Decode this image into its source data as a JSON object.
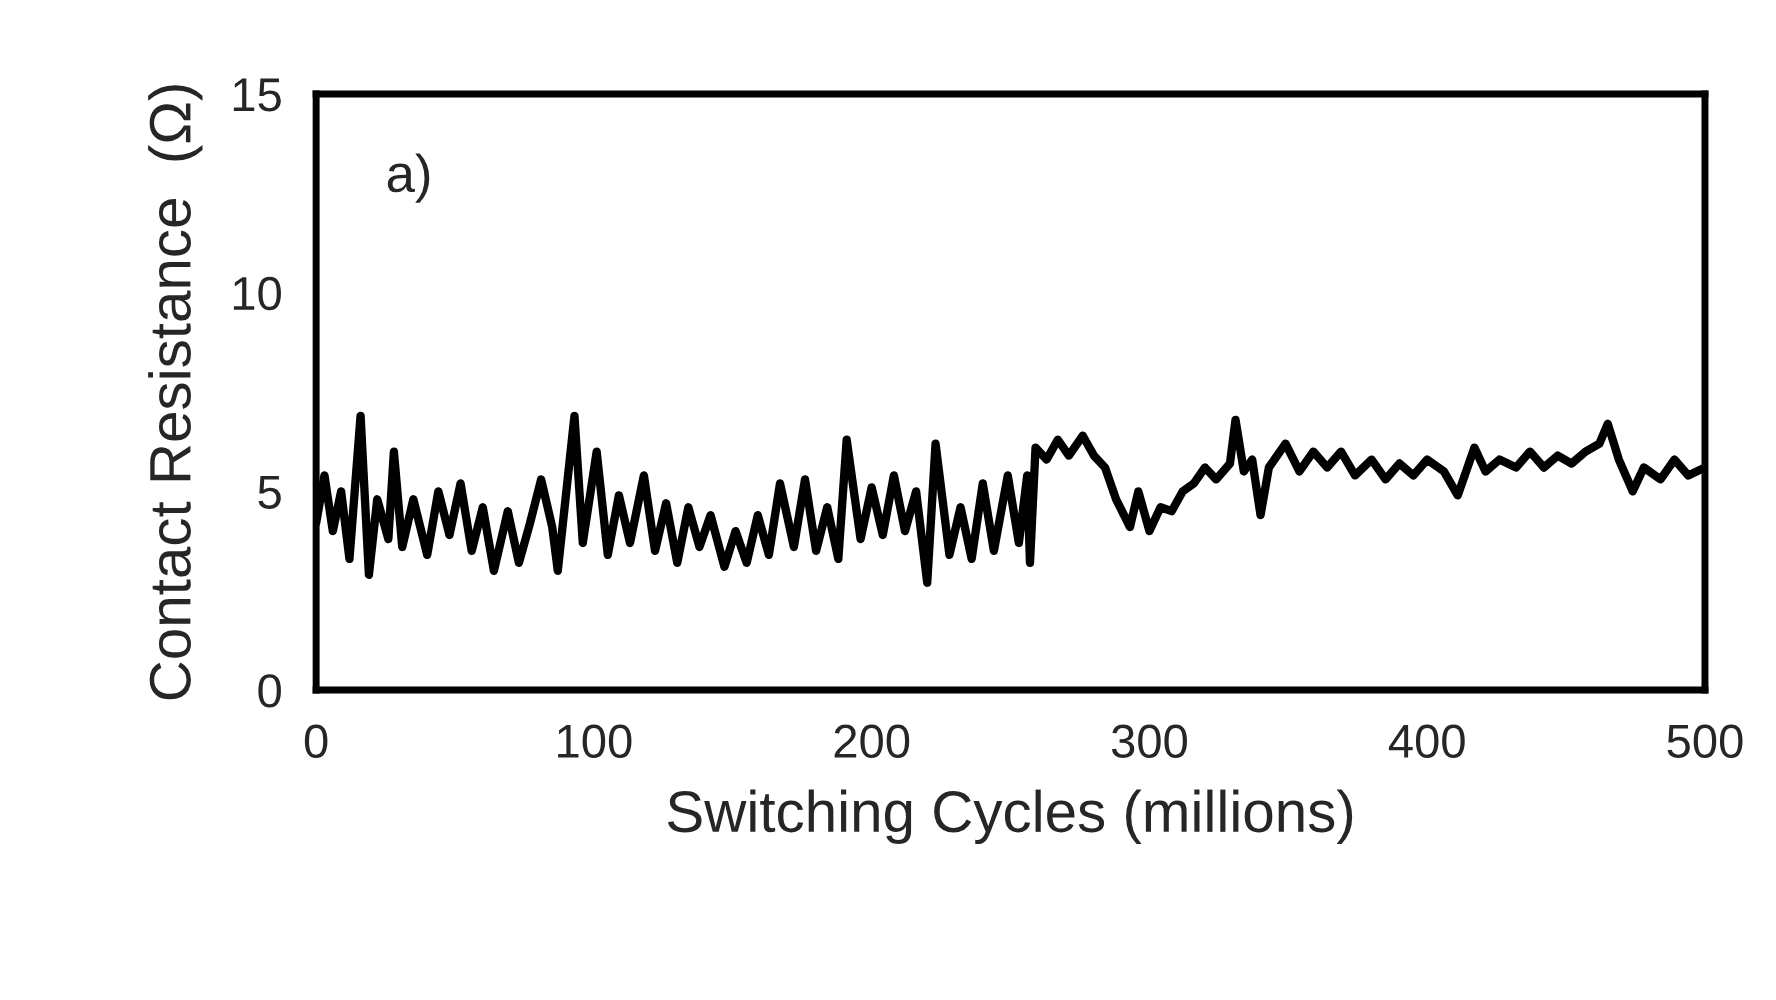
{
  "chart_data": {
    "type": "line",
    "xlabel": "Switching Cycles (millions)",
    "ylabel": "Contact Resistance  (Ω)",
    "annotations": [
      "a)"
    ],
    "xlim": [
      0,
      500
    ],
    "xticks": [
      0,
      100,
      200,
      300,
      400,
      500
    ],
    "ylim": [
      0,
      15
    ],
    "yticks": [
      0,
      5,
      10,
      15
    ],
    "grid": false,
    "marker": "none",
    "line_style": "solid",
    "series": [
      {
        "color": "#000000",
        "x": [
          0,
          3,
          6,
          9,
          12,
          16,
          19,
          22,
          26,
          28,
          31,
          35,
          40,
          44,
          48,
          52,
          56,
          60,
          64,
          69,
          73,
          77,
          81,
          85,
          87,
          93,
          96,
          101,
          105,
          109,
          113,
          118,
          122,
          126,
          130,
          134,
          138,
          142,
          147,
          151,
          155,
          159,
          163,
          167,
          172,
          176,
          180,
          184,
          188,
          191,
          196,
          200,
          204,
          208,
          212,
          216,
          220,
          223,
          228,
          232,
          236,
          240,
          244,
          249,
          253,
          256,
          257,
          259,
          263,
          267,
          271,
          276,
          280,
          284,
          288,
          293,
          296,
          300,
          304,
          308,
          312,
          316,
          320,
          324,
          329,
          331,
          334,
          337,
          340,
          343,
          349,
          354,
          359,
          364,
          369,
          374,
          380,
          385,
          390,
          395,
          400,
          406,
          411,
          417,
          421,
          426,
          432,
          437,
          442,
          447,
          452,
          457,
          462,
          465,
          469,
          474,
          478,
          484,
          489,
          494,
          500
        ],
        "values": [
          4.2,
          5.4,
          4.0,
          5.0,
          3.3,
          6.9,
          2.9,
          4.8,
          3.8,
          6.0,
          3.6,
          4.8,
          3.4,
          5.0,
          3.9,
          5.2,
          3.5,
          4.6,
          3.0,
          4.5,
          3.2,
          4.2,
          5.3,
          4.1,
          3.0,
          6.9,
          3.7,
          6.0,
          3.4,
          4.9,
          3.7,
          5.4,
          3.5,
          4.7,
          3.2,
          4.6,
          3.6,
          4.4,
          3.1,
          4.0,
          3.2,
          4.4,
          3.4,
          5.2,
          3.6,
          5.3,
          3.5,
          4.6,
          3.3,
          6.3,
          3.8,
          5.1,
          3.9,
          5.4,
          4.0,
          5.0,
          2.7,
          6.2,
          3.4,
          4.6,
          3.3,
          5.2,
          3.5,
          5.4,
          3.7,
          5.4,
          3.2,
          6.1,
          5.8,
          6.3,
          5.9,
          6.4,
          5.9,
          5.6,
          4.8,
          4.1,
          5.0,
          4.0,
          4.6,
          4.5,
          5.0,
          5.2,
          5.6,
          5.3,
          5.7,
          6.8,
          5.5,
          5.8,
          4.4,
          5.6,
          6.2,
          5.5,
          6.0,
          5.6,
          6.0,
          5.4,
          5.8,
          5.3,
          5.7,
          5.4,
          5.8,
          5.5,
          4.9,
          6.1,
          5.5,
          5.8,
          5.6,
          6.0,
          5.6,
          5.9,
          5.7,
          6.0,
          6.2,
          6.7,
          5.8,
          5.0,
          5.6,
          5.3,
          5.8,
          5.4,
          5.6
        ]
      }
    ]
  }
}
